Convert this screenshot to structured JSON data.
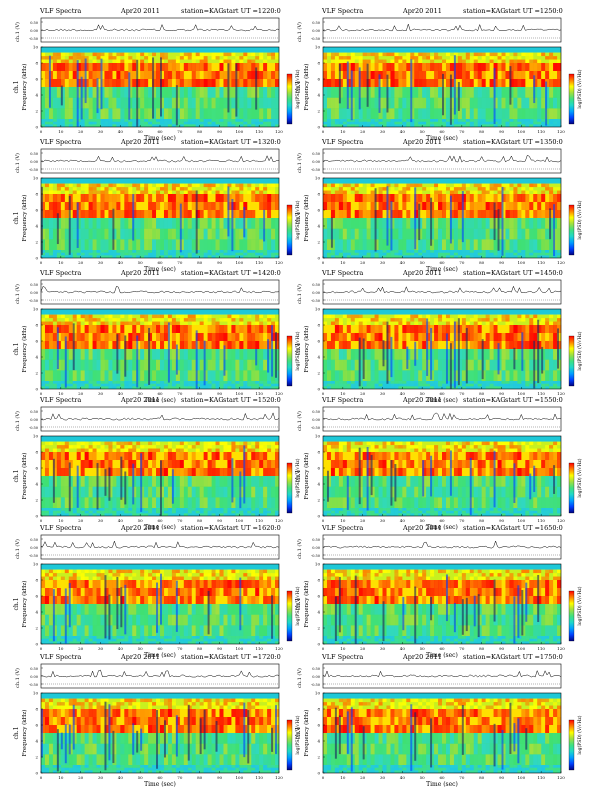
{
  "figure": {
    "header_left": "VLF Spectra",
    "date": "Apr20 2011",
    "station": "station=KAG",
    "start_prefix": "start UT =",
    "time_axis_label": "Time (sec)",
    "freq_axis_label": "Frequency (kHz)",
    "channel_label": "ch.1",
    "waveform_label": "ch.1 (V)",
    "colorbar_label": "log(PSD) (V/√Hz)",
    "waveform_ticks": [
      "0.50",
      "0.00",
      "-0.50"
    ],
    "freq_ticks": [
      "0",
      "2",
      "4",
      "6",
      "8",
      "10"
    ],
    "time_ticks": [
      "0",
      "10",
      "20",
      "30",
      "40",
      "50",
      "60",
      "70",
      "80",
      "90",
      "100",
      "110",
      "120"
    ],
    "colors": {
      "background": "#ffffff",
      "cyan_band": "#1ec8d8",
      "palette": [
        "#000080",
        "#0040ff",
        "#00a0ff",
        "#20d8c8",
        "#40e080",
        "#a0e040",
        "#ffff00",
        "#ff8000",
        "#ff0000"
      ]
    }
  },
  "panels": [
    {
      "start_ut": "1220:0"
    },
    {
      "start_ut": "1250:0"
    },
    {
      "start_ut": "1320:0"
    },
    {
      "start_ut": "1350:0"
    },
    {
      "start_ut": "1420:0"
    },
    {
      "start_ut": "1450:0"
    },
    {
      "start_ut": "1520:0"
    },
    {
      "start_ut": "1550:0"
    },
    {
      "start_ut": "1620:0"
    },
    {
      "start_ut": "1650:0"
    },
    {
      "start_ut": "1720:0"
    },
    {
      "start_ut": "1750:0"
    }
  ],
  "chart_data": {
    "type": "heatmap",
    "title": "VLF Spectra",
    "xlabel": "Time (sec)",
    "ylabel": "Frequency (kHz)",
    "xlim": [
      0,
      120
    ],
    "ylim": [
      0,
      10
    ],
    "waveform_ylim": [
      -0.5,
      0.5
    ],
    "colorbar": "log(PSD) (V/√Hz)",
    "grid": false,
    "bands_khz": [
      {
        "range": [
          0,
          1
        ],
        "level": "green-cyan"
      },
      {
        "range": [
          1,
          5
        ],
        "level": "green"
      },
      {
        "range": [
          5,
          8
        ],
        "level": "yellow-red (strongest)"
      },
      {
        "range": [
          8,
          9.3
        ],
        "level": "yellow-green"
      },
      {
        "range": [
          9.3,
          10
        ],
        "level": "cyan"
      }
    ],
    "panels_start_ut": [
      "1220:0",
      "1250:0",
      "1320:0",
      "1350:0",
      "1420:0",
      "1450:0",
      "1520:0",
      "1550:0",
      "1620:0",
      "1650:0",
      "1720:0",
      "1750:0"
    ]
  }
}
